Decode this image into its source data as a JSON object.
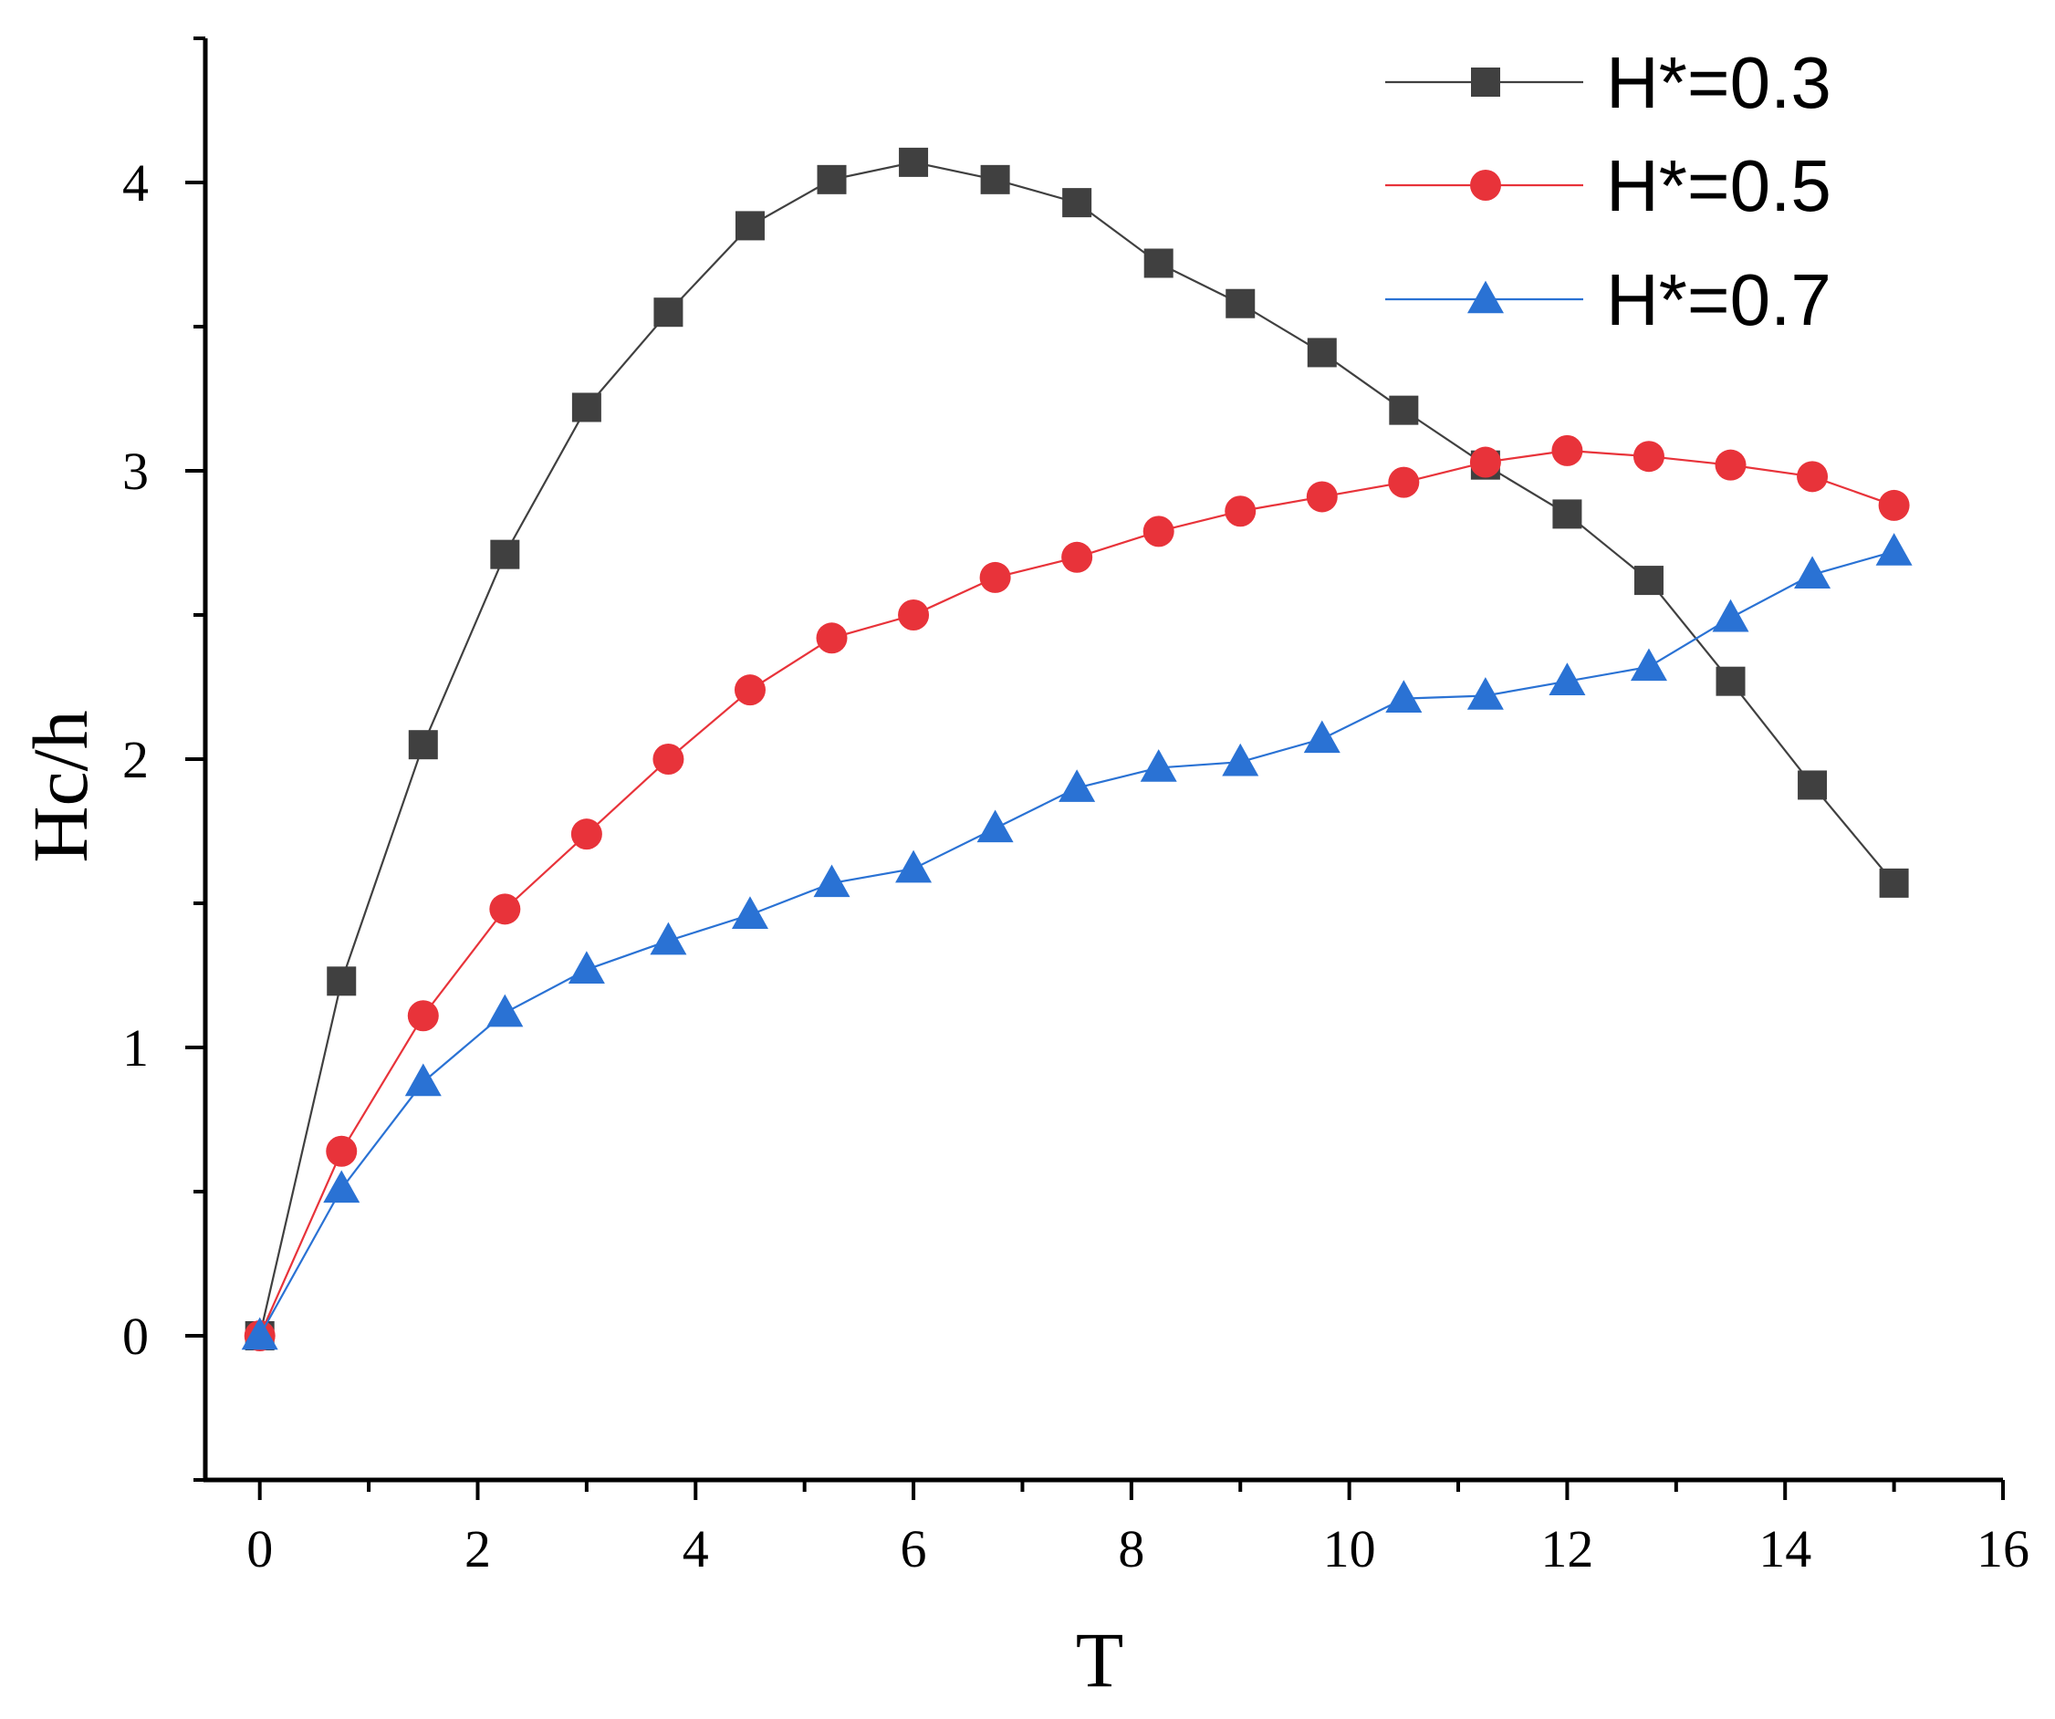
{
  "chart_data": {
    "type": "line",
    "title": "",
    "xlabel": "T",
    "ylabel": "Hc/h",
    "xlim": [
      -0.5,
      16
    ],
    "ylim": [
      -0.5,
      4.5
    ],
    "xticks": [
      0,
      2,
      4,
      6,
      8,
      10,
      12,
      14,
      16
    ],
    "yticks": [
      0,
      1,
      2,
      3,
      4
    ],
    "xtick_labels": [
      "0",
      "2",
      "4",
      "6",
      "8",
      "10",
      "12",
      "14",
      "16"
    ],
    "ytick_labels": [
      "0",
      "1",
      "2",
      "3",
      "4"
    ],
    "grid": false,
    "legend_position": "top-right",
    "x": [
      0,
      0.75,
      1.5,
      2.25,
      3,
      3.75,
      4.5,
      5.25,
      6,
      6.75,
      7.5,
      8.25,
      9,
      9.75,
      10.5,
      11.25,
      12,
      12.75,
      13.5,
      14.25,
      15
    ],
    "series": [
      {
        "name": "H*=0.3",
        "color": "#404040",
        "marker": "square",
        "values": [
          0.0,
          1.23,
          2.05,
          2.71,
          3.22,
          3.55,
          3.85,
          4.01,
          4.07,
          4.01,
          3.93,
          3.72,
          3.58,
          3.41,
          3.21,
          3.02,
          2.85,
          2.62,
          2.27,
          1.91,
          1.57
        ]
      },
      {
        "name": "H*=0.5",
        "color": "#e8333a",
        "marker": "circle",
        "values": [
          0.0,
          0.64,
          1.11,
          1.48,
          1.74,
          2.0,
          2.24,
          2.42,
          2.5,
          2.63,
          2.7,
          2.79,
          2.86,
          2.91,
          2.96,
          3.03,
          3.07,
          3.05,
          3.02,
          2.98,
          2.88
        ]
      },
      {
        "name": "H*=0.7",
        "color": "#2a72d4",
        "marker": "triangle",
        "values": [
          0.0,
          0.51,
          0.88,
          1.12,
          1.27,
          1.37,
          1.46,
          1.57,
          1.62,
          1.76,
          1.9,
          1.97,
          1.99,
          2.07,
          2.21,
          2.22,
          2.27,
          2.32,
          2.49,
          2.64,
          2.72
        ]
      }
    ]
  }
}
